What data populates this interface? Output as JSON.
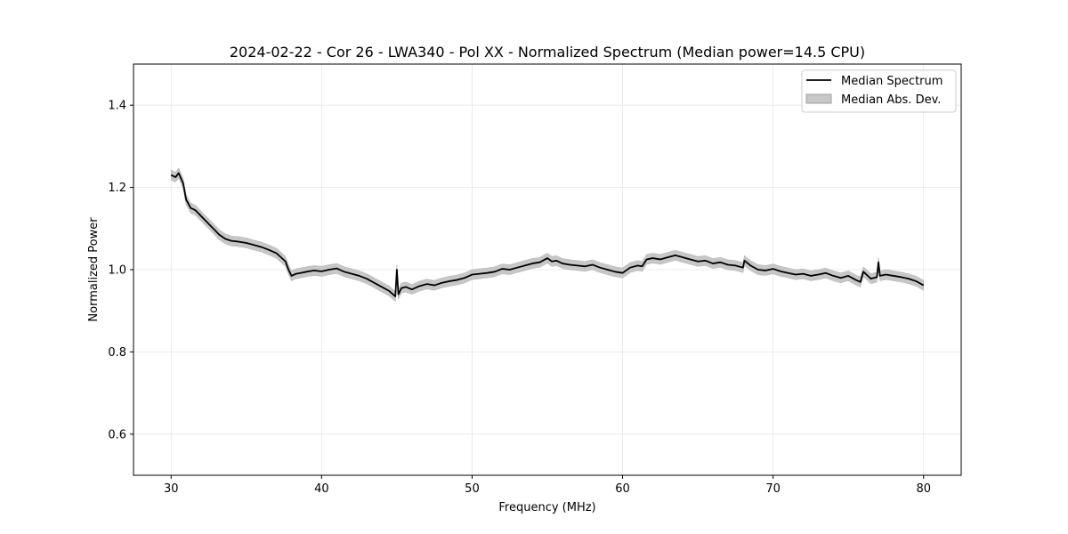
{
  "chart_data": {
    "type": "line",
    "title": "2024-02-22 - Cor 26 - LWA340 - Pol XX - Normalized Spectrum (Median power=14.5 CPU)",
    "xlabel": "Frequency (MHz)",
    "ylabel": "Normalized Power",
    "xlim": [
      27.5,
      82.5
    ],
    "ylim": [
      0.5,
      1.5
    ],
    "xticks": [
      30,
      40,
      50,
      60,
      70,
      80
    ],
    "yticks": [
      0.6,
      0.8,
      1.0,
      1.2,
      1.4
    ],
    "xtick_labels": [
      "30",
      "40",
      "50",
      "60",
      "70",
      "80"
    ],
    "ytick_labels": [
      "0.6",
      "0.8",
      "1.0",
      "1.2",
      "1.4"
    ],
    "grid": true,
    "legend_position": "top-right",
    "legend": [
      "Median Spectrum",
      "Median Abs. Dev."
    ],
    "mad_halfwidth": 0.012,
    "series": [
      {
        "name": "Median Spectrum",
        "color": "#000000",
        "x": [
          30.0,
          30.3,
          30.5,
          30.8,
          31.0,
          31.3,
          31.6,
          32.0,
          32.4,
          32.8,
          33.2,
          33.6,
          34.0,
          34.5,
          35.0,
          35.5,
          36.0,
          36.5,
          37.0,
          37.3,
          37.6,
          37.8,
          38.0,
          38.3,
          38.6,
          39.0,
          39.5,
          40.0,
          40.5,
          41.0,
          41.5,
          42.0,
          42.5,
          43.0,
          43.5,
          44.0,
          44.5,
          44.9,
          45.0,
          45.1,
          45.3,
          45.6,
          46.0,
          46.5,
          47.0,
          47.5,
          48.0,
          48.5,
          49.0,
          49.5,
          50.0,
          50.5,
          51.0,
          51.5,
          52.0,
          52.5,
          53.0,
          53.5,
          54.0,
          54.5,
          55.0,
          55.3,
          55.6,
          56.0,
          56.5,
          57.0,
          57.5,
          58.0,
          58.5,
          59.0,
          59.5,
          60.0,
          60.5,
          61.0,
          61.3,
          61.6,
          62.0,
          62.5,
          63.0,
          63.5,
          64.0,
          64.5,
          65.0,
          65.5,
          66.0,
          66.5,
          67.0,
          67.5,
          68.0,
          68.1,
          68.5,
          69.0,
          69.5,
          70.0,
          70.5,
          71.0,
          71.5,
          72.0,
          72.5,
          73.0,
          73.5,
          74.0,
          74.5,
          75.0,
          75.5,
          75.8,
          76.0,
          76.5,
          76.9,
          77.0,
          77.1,
          77.5,
          78.0,
          78.5,
          79.0,
          79.5,
          80.0
        ],
        "values": [
          1.23,
          1.225,
          1.235,
          1.21,
          1.17,
          1.15,
          1.145,
          1.13,
          1.115,
          1.1,
          1.085,
          1.075,
          1.07,
          1.068,
          1.065,
          1.06,
          1.055,
          1.048,
          1.04,
          1.03,
          1.02,
          1.0,
          0.985,
          0.99,
          0.992,
          0.995,
          0.998,
          0.996,
          1.0,
          1.003,
          0.995,
          0.99,
          0.985,
          0.978,
          0.968,
          0.958,
          0.948,
          0.935,
          1.0,
          0.94,
          0.955,
          0.958,
          0.952,
          0.96,
          0.965,
          0.962,
          0.968,
          0.972,
          0.975,
          0.98,
          0.988,
          0.99,
          0.992,
          0.995,
          1.002,
          1.0,
          1.005,
          1.01,
          1.015,
          1.018,
          1.028,
          1.02,
          1.022,
          1.015,
          1.012,
          1.01,
          1.008,
          1.012,
          1.005,
          1.0,
          0.995,
          0.992,
          1.005,
          1.01,
          1.008,
          1.025,
          1.028,
          1.025,
          1.03,
          1.035,
          1.03,
          1.025,
          1.02,
          1.022,
          1.015,
          1.018,
          1.012,
          1.01,
          1.005,
          1.022,
          1.01,
          1.0,
          0.998,
          1.002,
          0.996,
          0.992,
          0.988,
          0.99,
          0.985,
          0.988,
          0.992,
          0.985,
          0.98,
          0.985,
          0.975,
          0.97,
          0.995,
          0.978,
          0.982,
          1.018,
          0.985,
          0.988,
          0.985,
          0.982,
          0.978,
          0.972,
          0.962
        ]
      }
    ]
  }
}
